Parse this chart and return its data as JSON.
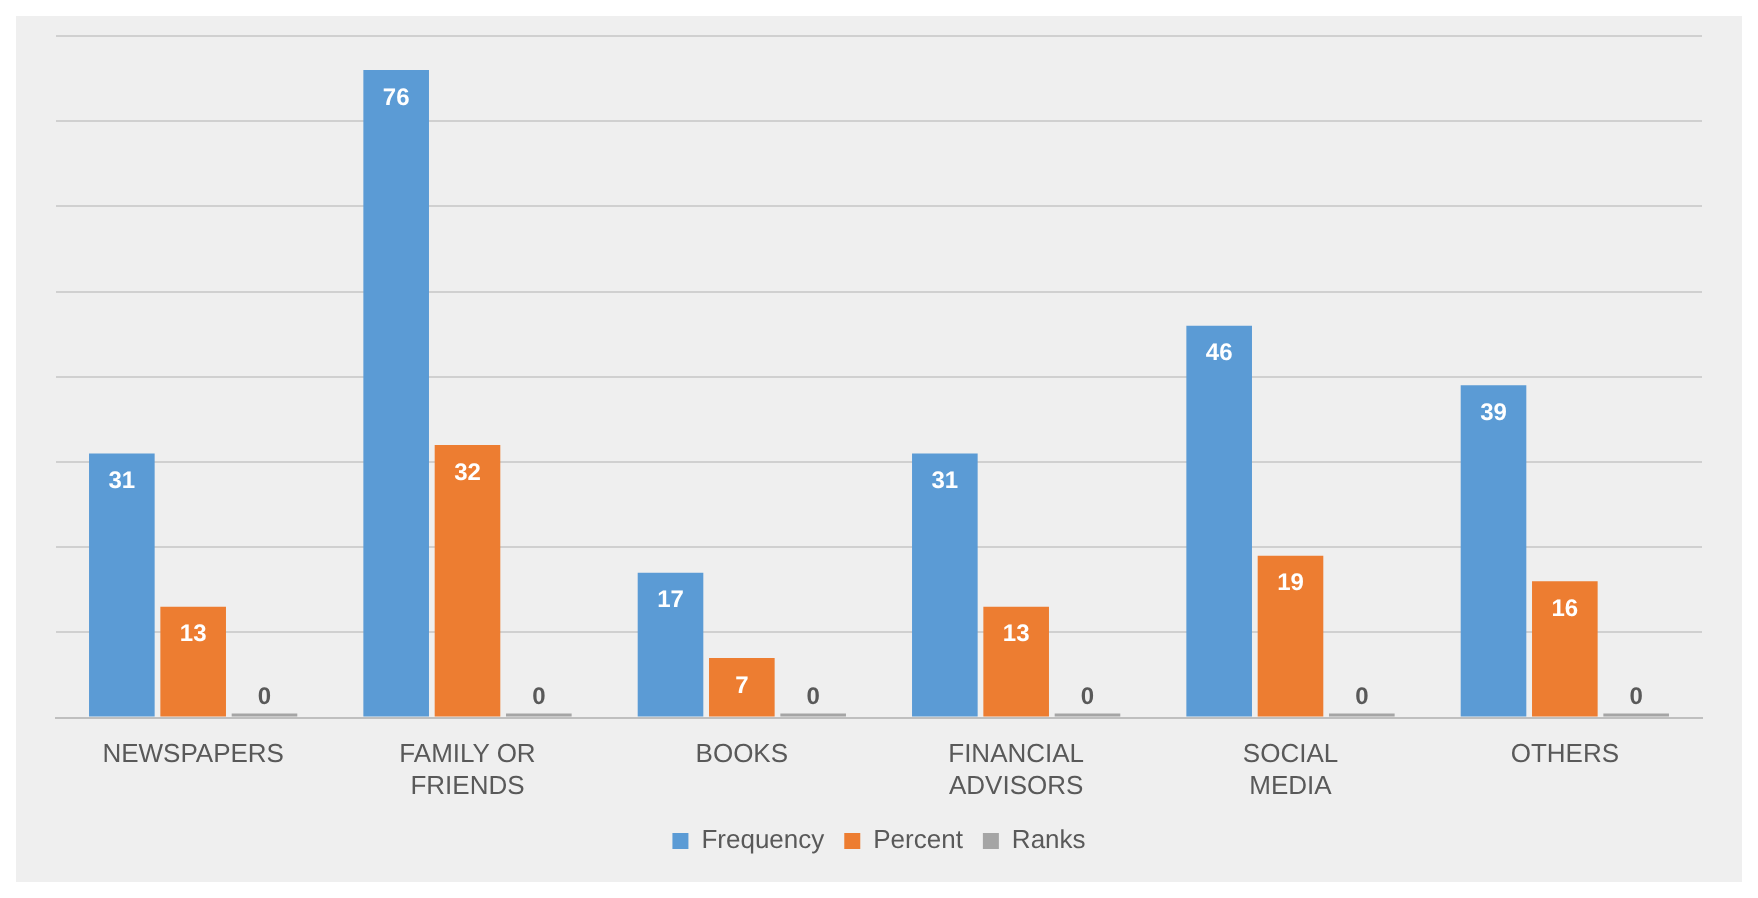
{
  "chart_data": {
    "type": "bar",
    "categories": [
      "NEWSPAPERS",
      "FAMILY OR FRIENDS",
      "BOOKS",
      "FINANCIAL ADVISORS",
      "SOCIAL MEDIA",
      "OTHERS"
    ],
    "series": [
      {
        "name": "Frequency",
        "color": "#5b9bd5",
        "values": [
          31,
          76,
          17,
          31,
          46,
          39
        ]
      },
      {
        "name": "Percent",
        "color": "#ed7d31",
        "values": [
          13,
          32,
          7,
          13,
          19,
          16
        ]
      },
      {
        "name": "Ranks",
        "color": "#a5a5a5",
        "values": [
          0,
          0,
          0,
          0,
          0,
          0
        ]
      }
    ],
    "ylim": [
      0,
      80
    ],
    "yticks": [
      {
        "value": 0,
        "label": null
      },
      {
        "value": 10,
        "label": null
      },
      {
        "value": 20,
        "label": null
      },
      {
        "value": 30,
        "label": null
      },
      {
        "value": 40,
        "label": null
      },
      {
        "value": 50,
        "label": null
      },
      {
        "value": 60,
        "label": null
      },
      {
        "value": 70,
        "label": null
      },
      {
        "value": 80,
        "label": null
      }
    ],
    "tick_labels": "x",
    "grid": "y",
    "legend": "bottom",
    "data_labels": true
  }
}
